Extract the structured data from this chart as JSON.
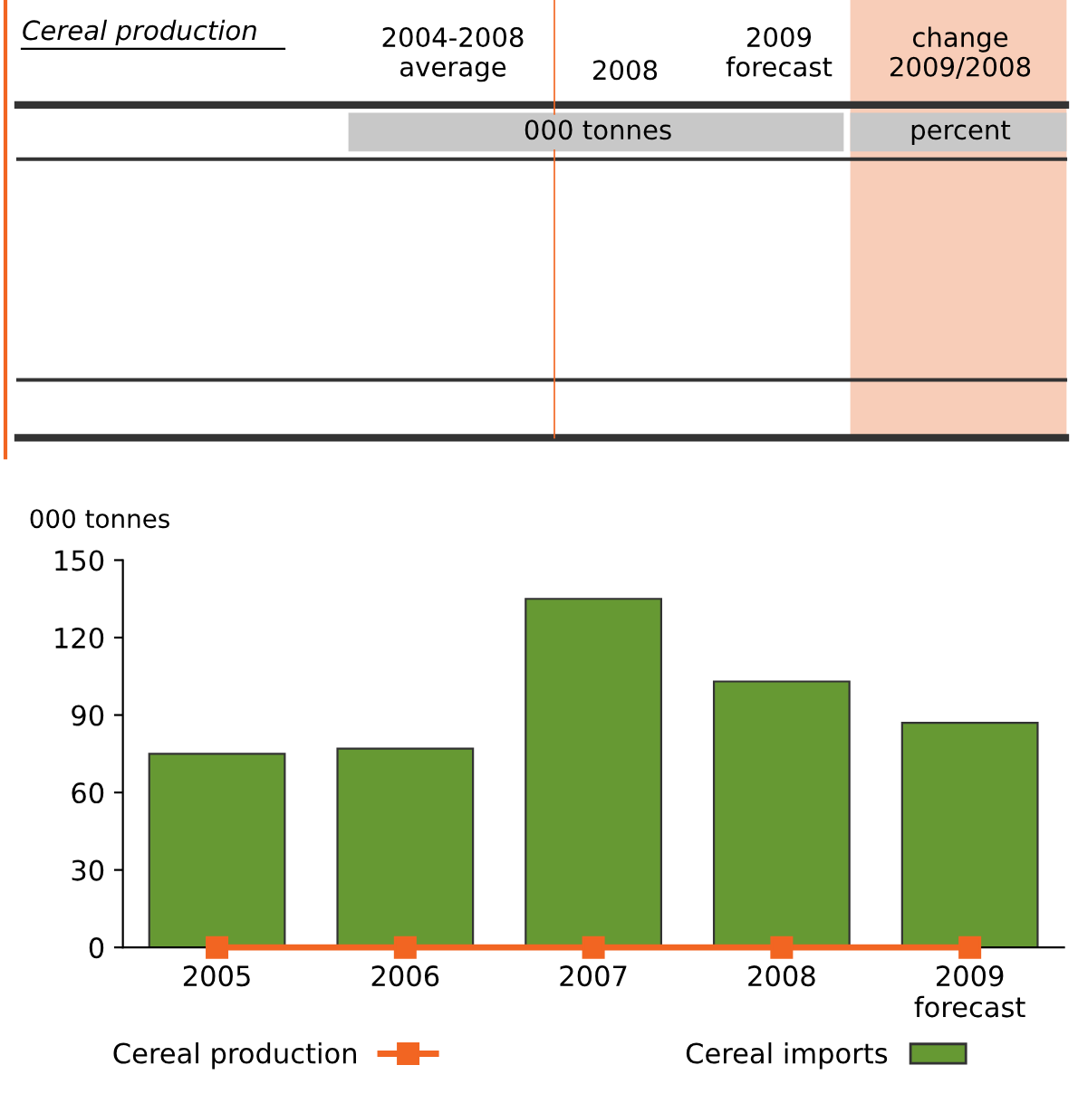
{
  "chart_data": {
    "type": "bar",
    "categories": [
      "2005",
      "2006",
      "2007",
      "2008",
      "2009\nforecast"
    ],
    "series": [
      {
        "name": "Cereal production",
        "type": "line",
        "color": "#f26522",
        "marker": "square",
        "values": [
          0,
          0,
          0,
          0,
          0
        ]
      },
      {
        "name": "Cereal imports",
        "color": "#669933",
        "values": [
          75,
          77,
          135,
          103,
          87
        ]
      }
    ],
    "ylabel": "000 tonnes",
    "ylim": [
      0,
      150
    ],
    "yticks": [
      0,
      30,
      60,
      90,
      120,
      150
    ],
    "grid": false,
    "legend": "bottom",
    "annotations": [
      "Cereal production",
      "2004-2008\naverage",
      "2008",
      "2009\nforecast",
      "change\n2009/2008",
      "000 tonnes",
      "percent"
    ]
  }
}
